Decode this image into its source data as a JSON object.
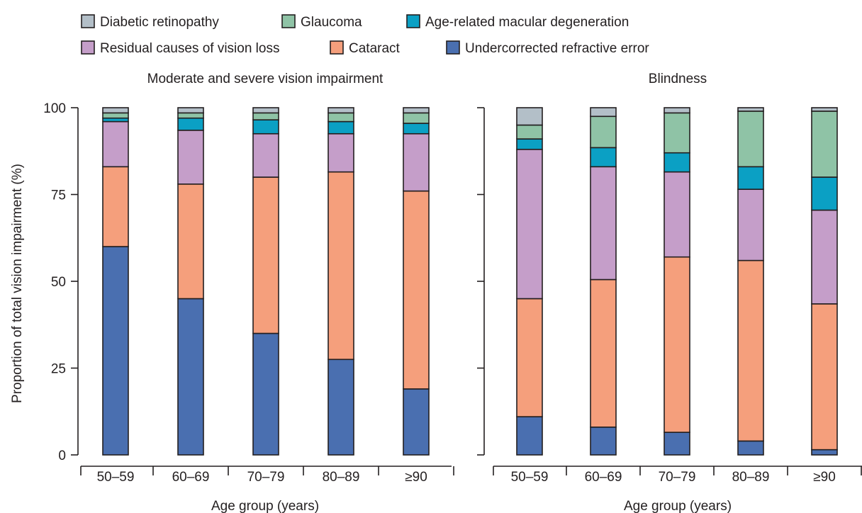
{
  "legend": {
    "items": [
      {
        "label": "Diabetic retinopathy",
        "key": "dr"
      },
      {
        "label": "Glaucoma",
        "key": "gl"
      },
      {
        "label": "Age-related macular degeneration",
        "key": "amd"
      },
      {
        "label": "Residual causes of vision loss",
        "key": "res"
      },
      {
        "label": "Cataract",
        "key": "cat"
      },
      {
        "label": "Undercorrected refractive error",
        "key": "ure"
      }
    ]
  },
  "colors": {
    "ure": "#4a6fb0",
    "cat": "#f59f7c",
    "res": "#c59ec9",
    "amd": "#0ba0c4",
    "gl": "#8fc3a6",
    "dr": "#b3bfc8",
    "axis": "#231f20"
  },
  "ylabel": "Proportion of total vision impairment (%)",
  "chart_data": [
    {
      "type": "bar",
      "stacked": true,
      "title": "Moderate and severe vision impairment",
      "xlabel": "Age group (years)",
      "categories": [
        "50–59",
        "60–69",
        "70–79",
        "80–89",
        "≥90"
      ],
      "ylim": [
        0,
        100
      ],
      "yticks": [
        0,
        25,
        50,
        75,
        100
      ],
      "series": [
        {
          "name": "Undercorrected refractive error",
          "key": "ure",
          "values": [
            60,
            45,
            35,
            27.5,
            19
          ]
        },
        {
          "name": "Cataract",
          "key": "cat",
          "values": [
            23,
            33,
            45,
            54,
            57
          ]
        },
        {
          "name": "Residual causes of vision loss",
          "key": "res",
          "values": [
            13,
            15.5,
            12.5,
            11,
            16.5
          ]
        },
        {
          "name": "Age-related macular degeneration",
          "key": "amd",
          "values": [
            1,
            3.5,
            4,
            3.5,
            3
          ]
        },
        {
          "name": "Glaucoma",
          "key": "gl",
          "values": [
            1.5,
            1.5,
            2,
            2.5,
            3
          ]
        },
        {
          "name": "Diabetic retinopathy",
          "key": "dr",
          "values": [
            1.5,
            1.5,
            1.5,
            1.5,
            1.5
          ]
        }
      ]
    },
    {
      "type": "bar",
      "stacked": true,
      "title": "Blindness",
      "xlabel": "Age group (years)",
      "categories": [
        "50–59",
        "60–69",
        "70–79",
        "80–89",
        "≥90"
      ],
      "ylim": [
        0,
        100
      ],
      "yticks": [
        0,
        25,
        50,
        75,
        100
      ],
      "series": [
        {
          "name": "Undercorrected refractive error",
          "key": "ure",
          "values": [
            11,
            8,
            6.5,
            4,
            1.5
          ]
        },
        {
          "name": "Cataract",
          "key": "cat",
          "values": [
            34,
            42.5,
            50.5,
            52,
            42
          ]
        },
        {
          "name": "Residual causes of vision loss",
          "key": "res",
          "values": [
            43,
            32.5,
            24.5,
            20.5,
            27
          ]
        },
        {
          "name": "Age-related macular degeneration",
          "key": "amd",
          "values": [
            3,
            5.5,
            5.5,
            6.5,
            9.5
          ]
        },
        {
          "name": "Glaucoma",
          "key": "gl",
          "values": [
            4,
            9,
            11.5,
            16,
            19
          ]
        },
        {
          "name": "Diabetic retinopathy",
          "key": "dr",
          "values": [
            5,
            2.5,
            1.5,
            1,
            1
          ]
        }
      ]
    }
  ]
}
